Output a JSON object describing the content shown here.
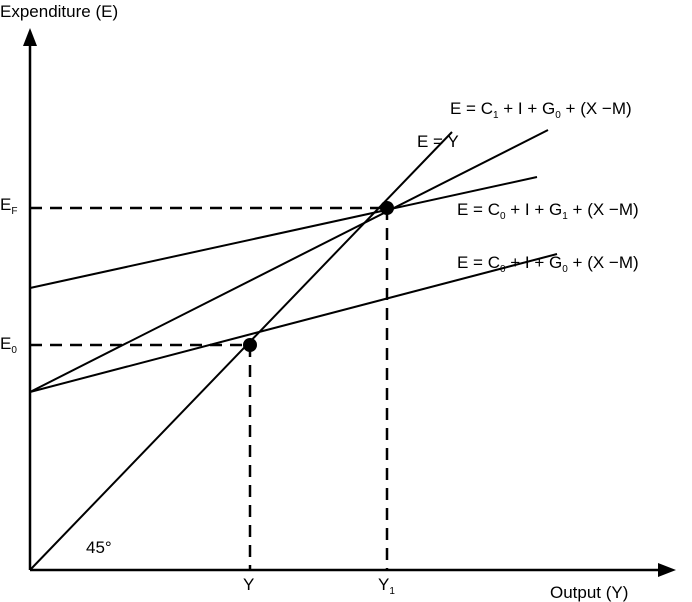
{
  "axes": {
    "y_title": "Expenditure (E)",
    "x_title": "Output (Y)"
  },
  "angle_label": "45°",
  "y_ticks": {
    "ef_main": "E",
    "ef_sub": "F",
    "e0_main": "E",
    "e0_sub": "0"
  },
  "x_ticks": {
    "y_main": "Y",
    "y1_main": "Y",
    "y1_sub": "1"
  },
  "lines": {
    "e_equals_y": "E = Y",
    "top": {
      "p1": "E = C",
      "s1": "1",
      "p2": " + I + G",
      "s2": "0",
      "p3": " + (X −M)"
    },
    "mid": {
      "p1": "E = C",
      "s1": "0",
      "p2": " + I + G",
      "s2": "1",
      "p3": " + (X −M)"
    },
    "low": {
      "p1": "E = C",
      "s1": "0",
      "p2": " + I + G",
      "s2": "0",
      "p3": " + (X −M)"
    }
  },
  "colors": {
    "ink": "#000000",
    "background": "#ffffff"
  }
}
